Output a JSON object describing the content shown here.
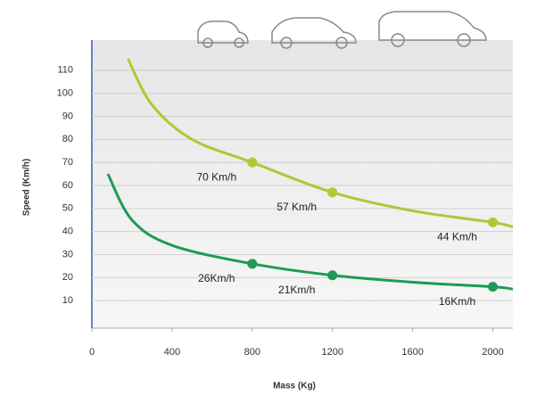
{
  "chart_data": {
    "type": "line",
    "x_label": "Mass (Kg)",
    "y_label": "Speed (Km/h)",
    "xlim": [
      0,
      2100
    ],
    "xticks": [
      0,
      400,
      800,
      1200,
      1600,
      2000
    ],
    "ylim": [
      0,
      120
    ],
    "yticks": [
      10,
      20,
      30,
      40,
      50,
      60,
      70,
      80,
      90,
      100,
      110
    ],
    "grid": true,
    "series": [
      {
        "color": "#b3c637",
        "x": [
          180,
          300,
          500,
          800,
          1200,
          1600,
          2000,
          2100
        ],
        "values": [
          115,
          95,
          80,
          70,
          57,
          49,
          44,
          42
        ],
        "markers": {
          "x": [
            800,
            1200,
            2000
          ],
          "values": [
            70,
            57,
            44
          ],
          "value_labels": [
            "70 Km/h",
            "57 Km/h",
            "44 Km/h"
          ]
        }
      },
      {
        "color": "#1f9a57",
        "x": [
          80,
          200,
          400,
          800,
          1200,
          1600,
          2000,
          2100
        ],
        "values": [
          65,
          45,
          34,
          26,
          21,
          18,
          16,
          15
        ],
        "markers": {
          "x": [
            800,
            1200,
            2000
          ],
          "values": [
            26,
            21,
            16
          ],
          "value_labels": [
            "26Km/h",
            "21Km/h",
            "16Km/h"
          ]
        }
      }
    ]
  }
}
